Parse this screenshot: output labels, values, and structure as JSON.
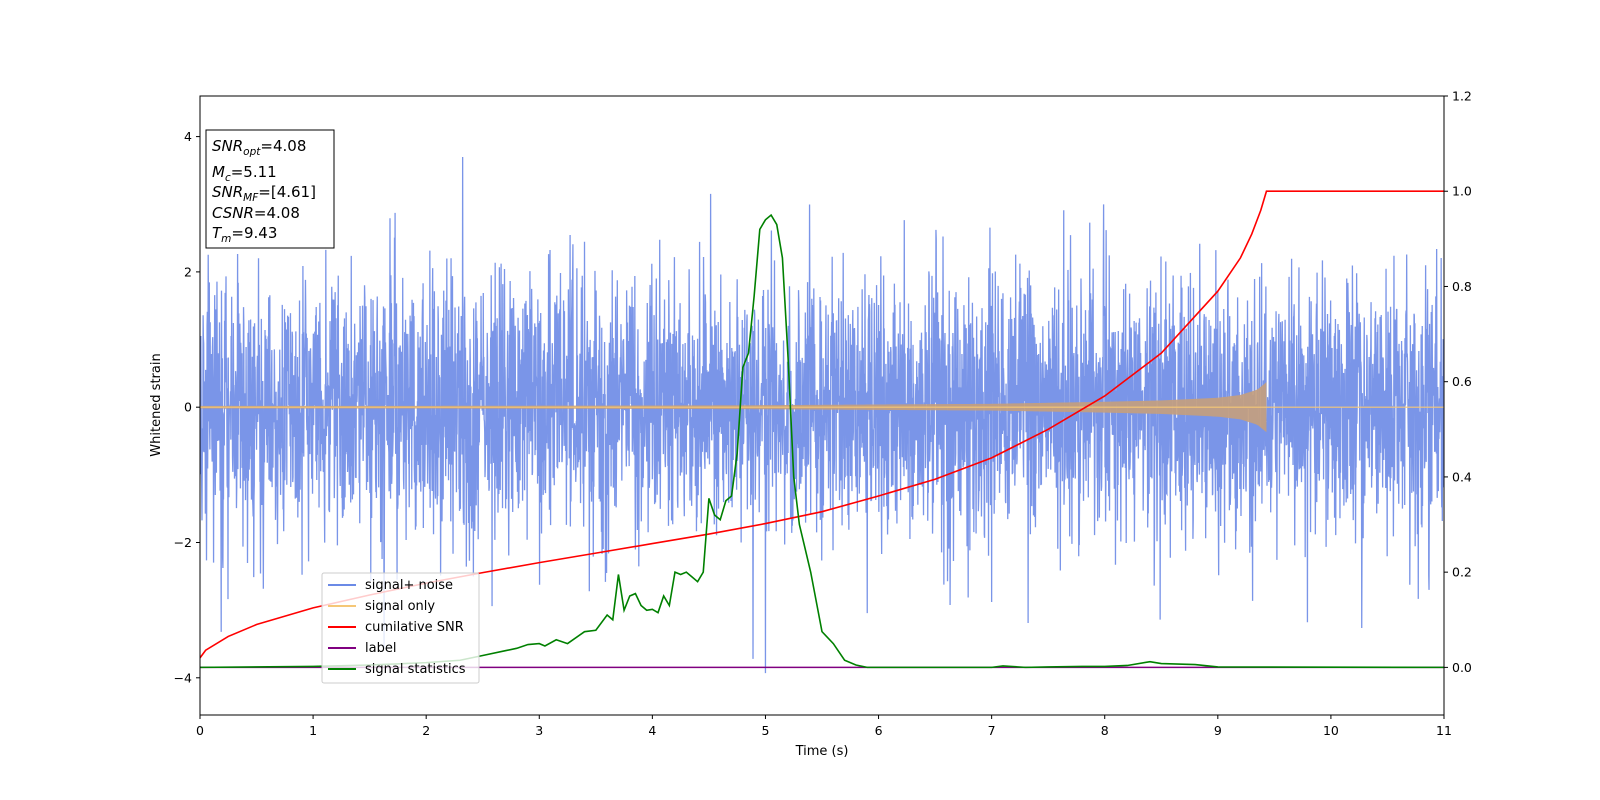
{
  "chart_data": {
    "type": "line",
    "xlabel": "Time (s)",
    "ylabel": "Whitened strain",
    "xlim": [
      0,
      11
    ],
    "ylim": [
      -4.55,
      4.6
    ],
    "ylim_right": [
      -0.1,
      1.2
    ],
    "x_ticks": [
      0,
      1,
      2,
      3,
      4,
      5,
      6,
      7,
      8,
      9,
      10,
      11
    ],
    "x_tick_labels": [
      "0",
      "1",
      "2",
      "3",
      "4",
      "5",
      "6",
      "7",
      "8",
      "9",
      "10",
      "11"
    ],
    "y_ticks": [
      -4,
      -2,
      0,
      2,
      4
    ],
    "y_tick_labels": [
      "−4",
      "−2",
      "0",
      "2",
      "4"
    ],
    "y_right_ticks": [
      0.0,
      0.2,
      0.4,
      0.6,
      0.8,
      1.0,
      1.2
    ],
    "y_right_tick_labels": [
      "0.0",
      "0.2",
      "0.4",
      "0.6",
      "0.8",
      "1.0",
      "1.2"
    ],
    "grid": false,
    "legend_position": "bottom-left",
    "colors": {
      "noise": "#6b8ae6",
      "signal": "#f5c777",
      "snr": "#ff0000",
      "label": "#800080",
      "stat": "#008000"
    },
    "annotation": {
      "snr_opt": {
        "base": "SNR",
        "sub": "opt",
        "value": "=4.08"
      },
      "mc": {
        "base": "M",
        "sub": "c",
        "value": "=5.11"
      },
      "snr_mf": {
        "base": "SNR",
        "sub": "MF",
        "value": "=[4.61]"
      },
      "csnr": {
        "base": "CSNR",
        "value": "=4.08"
      },
      "tm": {
        "base": "T",
        "sub": "m",
        "value": "=9.43"
      }
    },
    "series": [
      {
        "name": "signal+ noise",
        "axis": "left",
        "description_values": {
          "t_start": 0,
          "t_end": 11,
          "std": 1.0
        }
      },
      {
        "name": "signal only",
        "axis": "left",
        "envelope": {
          "t": [
            0,
            2,
            4,
            5,
            6,
            7,
            8,
            8.5,
            9,
            9.2,
            9.35,
            9.43,
            9.44,
            11
          ],
          "amp": [
            0.02,
            0.02,
            0.025,
            0.03,
            0.04,
            0.05,
            0.08,
            0.1,
            0.14,
            0.18,
            0.26,
            0.37,
            0,
            0
          ]
        }
      },
      {
        "name": "cumilative SNR",
        "axis": "right",
        "x": [
          0,
          0.05,
          0.25,
          0.5,
          1,
          1.5,
          2,
          2.5,
          3,
          3.5,
          4,
          4.5,
          5,
          5.5,
          6,
          6.5,
          7,
          7.5,
          8,
          8.5,
          9,
          9.2,
          9.3,
          9.38,
          9.43,
          11
        ],
        "y": [
          0.02,
          0.036,
          0.065,
          0.09,
          0.125,
          0.152,
          0.177,
          0.199,
          0.22,
          0.24,
          0.26,
          0.28,
          0.302,
          0.327,
          0.36,
          0.395,
          0.44,
          0.5,
          0.57,
          0.66,
          0.79,
          0.86,
          0.91,
          0.96,
          1.0,
          1.0
        ]
      },
      {
        "name": "label",
        "axis": "right",
        "x": [
          0,
          11
        ],
        "y": [
          0,
          0
        ]
      },
      {
        "name": "signal statistics",
        "axis": "right",
        "x": [
          0,
          1,
          1.5,
          2,
          2.3,
          2.5,
          2.7,
          2.8,
          2.9,
          3.0,
          3.05,
          3.15,
          3.25,
          3.4,
          3.5,
          3.6,
          3.65,
          3.7,
          3.75,
          3.8,
          3.85,
          3.9,
          3.95,
          4.0,
          4.05,
          4.1,
          4.15,
          4.2,
          4.25,
          4.3,
          4.35,
          4.4,
          4.45,
          4.5,
          4.55,
          4.6,
          4.65,
          4.7,
          4.75,
          4.8,
          4.85,
          4.9,
          4.95,
          5.0,
          5.05,
          5.1,
          5.15,
          5.2,
          5.25,
          5.3,
          5.35,
          5.4,
          5.5,
          5.6,
          5.7,
          5.8,
          5.9,
          6.0,
          7.0,
          7.1,
          7.3,
          7.5,
          7.8,
          8.0,
          8.2,
          8.4,
          8.5,
          8.8,
          9.0,
          11
        ],
        "y": [
          0.0,
          0.002,
          0.005,
          0.01,
          0.015,
          0.025,
          0.035,
          0.04,
          0.048,
          0.05,
          0.045,
          0.058,
          0.05,
          0.075,
          0.078,
          0.11,
          0.1,
          0.195,
          0.12,
          0.15,
          0.155,
          0.13,
          0.12,
          0.122,
          0.115,
          0.15,
          0.13,
          0.2,
          0.195,
          0.2,
          0.19,
          0.18,
          0.2,
          0.355,
          0.32,
          0.31,
          0.35,
          0.36,
          0.45,
          0.63,
          0.66,
          0.78,
          0.92,
          0.94,
          0.95,
          0.93,
          0.86,
          0.65,
          0.4,
          0.3,
          0.25,
          0.2,
          0.075,
          0.05,
          0.015,
          0.005,
          0.0,
          0.0,
          0.0,
          0.003,
          0.0,
          0.001,
          0.002,
          0.002,
          0.004,
          0.012,
          0.008,
          0.006,
          0.001,
          0.0
        ]
      }
    ]
  }
}
